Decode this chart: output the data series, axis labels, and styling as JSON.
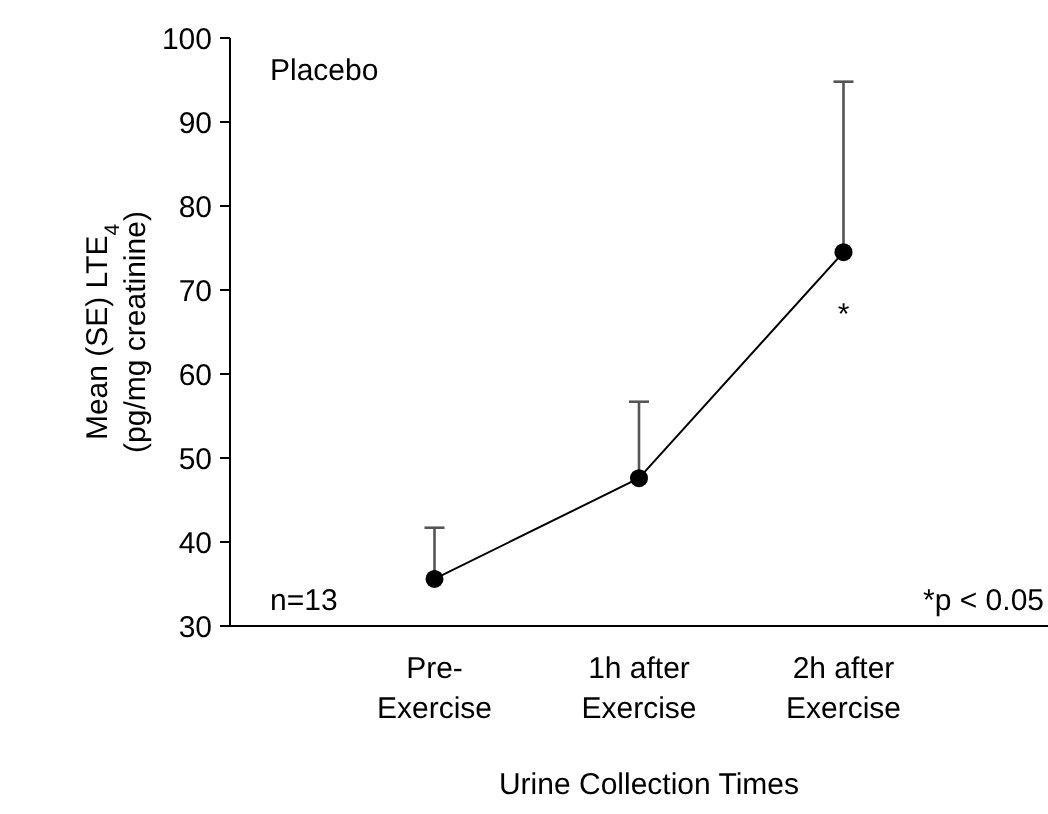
{
  "chart_data": {
    "type": "line",
    "xlabel": "Urine Collection Times",
    "ylabel": "Mean (SE) LTE$_{4}$\n(pg/mg creatinine)",
    "categories": [
      "Pre-\nExercise",
      "1h after\nExercise",
      "2h after\nExercise"
    ],
    "series": [
      {
        "color": "#000000",
        "values": [
          35.6,
          47.6,
          74.5
        ],
        "errors": [
          [
            35.6,
            41.7
          ],
          [
            47.6,
            56.7
          ],
          [
            74.5,
            94.8
          ]
        ]
      }
    ],
    "ylim": [
      30,
      100
    ],
    "yticks": [
      30,
      40,
      50,
      60,
      70,
      80,
      90,
      100
    ],
    "marker": "circle",
    "line_style": "solid",
    "grid": false,
    "annotations": [
      "Placebo",
      "n=13",
      "*p < 0.05",
      "*"
    ]
  }
}
